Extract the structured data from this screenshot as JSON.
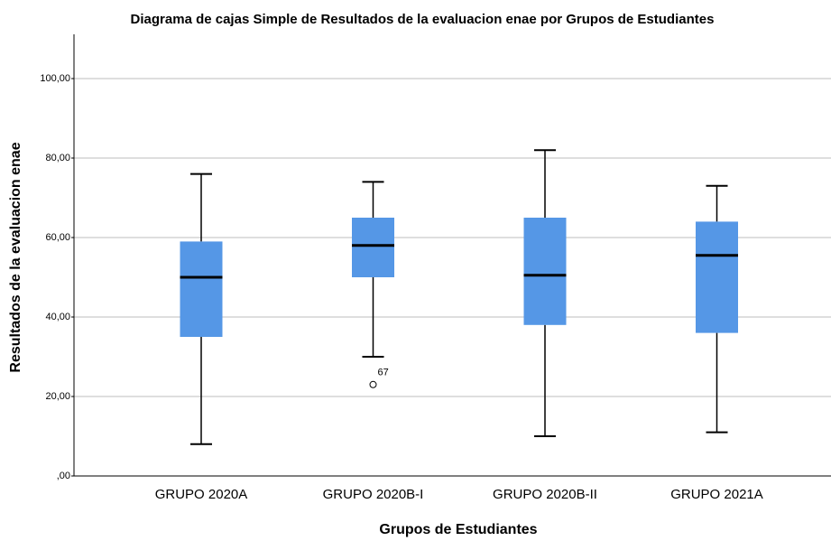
{
  "chart_data": {
    "type": "box",
    "title": "Diagrama de cajas Simple de Resultados de la evaluacion enae  por Grupos de Estudiantes",
    "xlabel": "Grupos de Estudiantes",
    "ylabel": "Resultados de la evaluacion enae",
    "categories": [
      "GRUPO 2020A",
      "GRUPO 2020B-I",
      "GRUPO 2020B-II",
      "GRUPO 2021A"
    ],
    "min": [
      8,
      30,
      10,
      11
    ],
    "q1": [
      35,
      50,
      38,
      36
    ],
    "median": [
      50,
      58,
      50.5,
      55.5
    ],
    "q3": [
      59,
      65,
      65,
      64
    ],
    "max": [
      76,
      74,
      82,
      73
    ],
    "outliers": [
      [],
      [
        23
      ],
      [],
      []
    ],
    "outlier_labels": [
      [],
      [
        "67"
      ],
      [],
      []
    ],
    "color": "#5597e6",
    "ylim": [
      0,
      110
    ],
    "yticks": [
      {
        "value": 0,
        "label": ",00"
      },
      {
        "value": 20,
        "label": "20,00"
      },
      {
        "value": 40,
        "label": "40,00"
      },
      {
        "value": 60,
        "label": "60,00"
      },
      {
        "value": 80,
        "label": "80,00"
      },
      {
        "value": 100,
        "label": "100,00"
      }
    ],
    "grid": true
  }
}
